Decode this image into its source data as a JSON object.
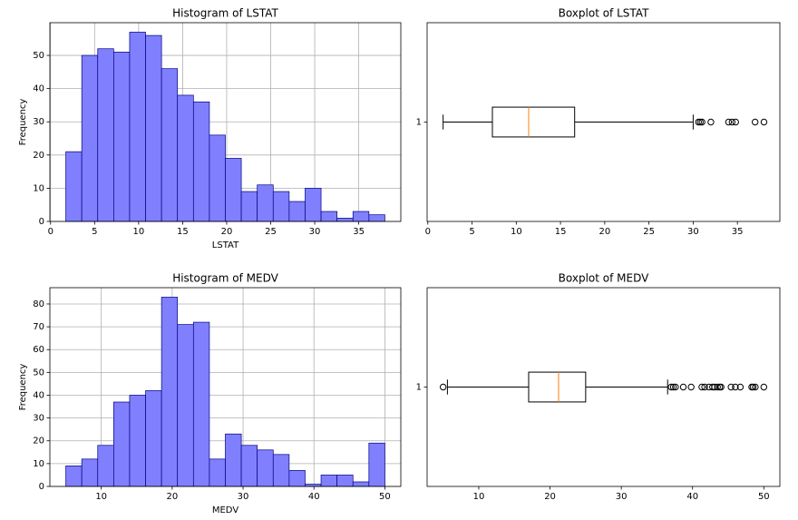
{
  "chart_data": [
    {
      "type": "histogram",
      "title": "Histogram of LSTAT",
      "xlabel": "LSTAT",
      "ylabel": "Frequency",
      "bins": [
        1.73,
        3.542,
        5.354,
        7.166,
        8.978,
        10.79,
        12.602,
        14.414,
        16.226,
        18.038,
        19.85,
        21.662,
        23.474,
        25.286,
        27.098,
        28.91,
        30.722,
        32.534,
        34.346,
        36.158,
        37.97
      ],
      "values": [
        21,
        50,
        52,
        51,
        57,
        56,
        46,
        38,
        36,
        26,
        19,
        9,
        11,
        9,
        6,
        10,
        3,
        1,
        3,
        2
      ],
      "color": "#8080ff",
      "edgecolor": "#000080",
      "xlim": [
        -0.08,
        39.78
      ],
      "xticks": [
        0,
        5,
        10,
        15,
        20,
        25,
        30,
        35
      ],
      "ylim": [
        0,
        59.85
      ],
      "yticks": [
        0,
        10,
        20,
        30,
        40,
        50
      ],
      "grid": true
    },
    {
      "type": "boxplot",
      "title": "Boxplot of LSTAT",
      "orientation": "horizontal",
      "whislo": 1.73,
      "q1": 7.3,
      "med": 11.4,
      "q3": 16.6,
      "whishi": 30.0,
      "fliers": [
        30.6,
        30.8,
        31.0,
        32.0,
        34.0,
        34.4,
        34.8,
        37.0,
        38.0
      ],
      "median_color": "#ff7f0e",
      "xlim": [
        -0.08,
        39.8
      ],
      "xticks": [
        0,
        5,
        10,
        15,
        20,
        25,
        30,
        35
      ],
      "ylim": [
        0.5,
        1.5
      ],
      "yticks": [
        1
      ],
      "grid": false
    },
    {
      "type": "histogram",
      "title": "Histogram of MEDV",
      "xlabel": "MEDV",
      "ylabel": "Frequency",
      "bins": [
        5,
        7.25,
        9.5,
        11.75,
        14,
        16.25,
        18.5,
        20.75,
        23,
        25.25,
        27.5,
        29.75,
        32,
        34.25,
        36.5,
        38.75,
        41,
        43.25,
        45.5,
        47.75,
        50
      ],
      "values": [
        9,
        12,
        18,
        37,
        40,
        42,
        83,
        71,
        72,
        12,
        23,
        18,
        16,
        14,
        7,
        1,
        5,
        5,
        2,
        19
      ],
      "color": "#8080ff",
      "edgecolor": "#000080",
      "xlim": [
        2.75,
        52.25
      ],
      "xticks": [
        10,
        20,
        30,
        40,
        50
      ],
      "ylim": [
        0,
        87.15
      ],
      "yticks": [
        0,
        10,
        20,
        30,
        40,
        50,
        60,
        70,
        80
      ],
      "grid": true
    },
    {
      "type": "boxplot",
      "title": "Boxplot of MEDV",
      "orientation": "horizontal",
      "whislo": 5.6,
      "q1": 17.0,
      "med": 21.2,
      "q3": 25.0,
      "whishi": 36.5,
      "fliers": [
        5.0,
        37.0,
        37.3,
        37.6,
        38.7,
        39.8,
        41.3,
        41.7,
        42.3,
        42.8,
        43.1,
        43.5,
        43.8,
        44.0,
        45.4,
        46.0,
        46.7,
        48.3,
        48.5,
        48.8,
        50.0
      ],
      "median_color": "#ff7f0e",
      "xlim": [
        2.75,
        52.25
      ],
      "xticks": [
        10,
        20,
        30,
        40,
        50
      ],
      "ylim": [
        0.5,
        1.5
      ],
      "yticks": [
        1
      ],
      "grid": false
    }
  ]
}
